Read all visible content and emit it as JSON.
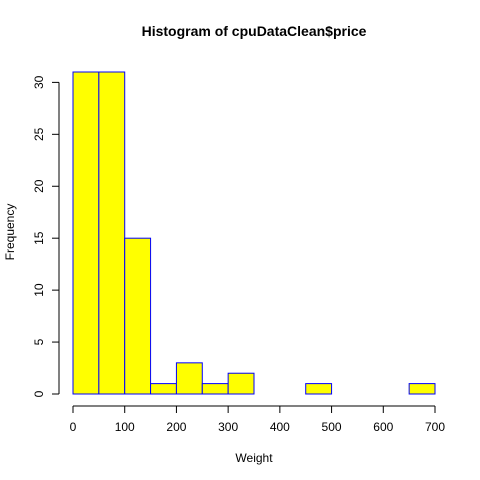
{
  "chart_data": {
    "type": "bar",
    "title": "Histogram of cpuDataClean$price",
    "xlabel": "Weight",
    "ylabel": "Frequency",
    "bin_edges": [
      0,
      50,
      100,
      150,
      200,
      250,
      300,
      350,
      400,
      450,
      500,
      550,
      600,
      650,
      700
    ],
    "values": [
      31,
      31,
      15,
      1,
      3,
      1,
      2,
      0,
      0,
      1,
      0,
      0,
      0,
      1
    ],
    "xlim": [
      0,
      700
    ],
    "ylim": [
      0,
      31
    ],
    "x_ticks": [
      0,
      100,
      200,
      300,
      400,
      500,
      600,
      700
    ],
    "y_ticks": [
      0,
      5,
      10,
      15,
      20,
      25,
      30
    ],
    "bar_fill": "#ffff00",
    "bar_stroke": "#0000ff",
    "grid": false
  }
}
